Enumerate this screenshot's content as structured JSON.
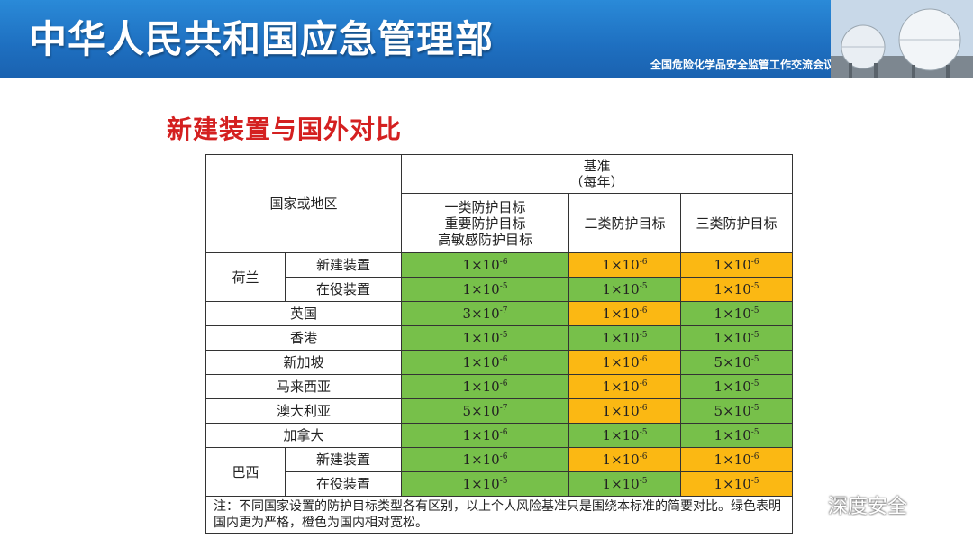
{
  "banner": {
    "title": "中华人民共和国应急管理部",
    "subtitle": "全国危险化学品安全监管工作交流会议"
  },
  "slide": {
    "title": "新建装置与国外对比"
  },
  "table": {
    "header": {
      "country_col": "国家或地区",
      "baseline": "基准",
      "baseline_unit": "（每年）",
      "cat1_lines": [
        "一类防护目标",
        "重要防护目标",
        "高敏感防护目标"
      ],
      "cat2": "二类防护目标",
      "cat3": "三类防护目标"
    },
    "colors": {
      "green": "#77c04a",
      "orange": "#fbb813"
    },
    "rows": [
      {
        "group": "荷兰",
        "sub": "新建装置",
        "cells": [
          {
            "m": "1",
            "e": "-6",
            "c": "green"
          },
          {
            "m": "1",
            "e": "-6",
            "c": "orange"
          },
          {
            "m": "1",
            "e": "-6",
            "c": "orange"
          }
        ]
      },
      {
        "group": "荷兰",
        "sub": "在役装置",
        "cells": [
          {
            "m": "1",
            "e": "-5",
            "c": "green"
          },
          {
            "m": "1",
            "e": "-5",
            "c": "green"
          },
          {
            "m": "1",
            "e": "-5",
            "c": "orange"
          }
        ]
      },
      {
        "name": "英国",
        "cells": [
          {
            "m": "3",
            "e": "-7",
            "c": "green"
          },
          {
            "m": "1",
            "e": "-6",
            "c": "orange"
          },
          {
            "m": "1",
            "e": "-5",
            "c": "green"
          }
        ]
      },
      {
        "name": "香港",
        "cells": [
          {
            "m": "1",
            "e": "-5",
            "c": "green"
          },
          {
            "m": "1",
            "e": "-5",
            "c": "green"
          },
          {
            "m": "1",
            "e": "-5",
            "c": "green"
          }
        ]
      },
      {
        "name": "新加坡",
        "cells": [
          {
            "m": "1",
            "e": "-6",
            "c": "green"
          },
          {
            "m": "1",
            "e": "-6",
            "c": "orange"
          },
          {
            "m": "5",
            "e": "-5",
            "c": "green"
          }
        ]
      },
      {
        "name": "马来西亚",
        "cells": [
          {
            "m": "1",
            "e": "-6",
            "c": "green"
          },
          {
            "m": "1",
            "e": "-6",
            "c": "orange"
          },
          {
            "m": "1",
            "e": "-5",
            "c": "green"
          }
        ]
      },
      {
        "name": "澳大利亚",
        "cells": [
          {
            "m": "5",
            "e": "-7",
            "c": "green"
          },
          {
            "m": "1",
            "e": "-6",
            "c": "orange"
          },
          {
            "m": "5",
            "e": "-5",
            "c": "green"
          }
        ]
      },
      {
        "name": "加拿大",
        "cells": [
          {
            "m": "1",
            "e": "-6",
            "c": "green"
          },
          {
            "m": "1",
            "e": "-5",
            "c": "green"
          },
          {
            "m": "1",
            "e": "-5",
            "c": "green"
          }
        ]
      },
      {
        "group": "巴西",
        "sub": "新建装置",
        "cells": [
          {
            "m": "1",
            "e": "-6",
            "c": "green"
          },
          {
            "m": "1",
            "e": "-6",
            "c": "orange"
          },
          {
            "m": "1",
            "e": "-6",
            "c": "orange"
          }
        ]
      },
      {
        "group": "巴西",
        "sub": "在役装置",
        "cells": [
          {
            "m": "1",
            "e": "-5",
            "c": "green"
          },
          {
            "m": "1",
            "e": "-5",
            "c": "green"
          },
          {
            "m": "1",
            "e": "-5",
            "c": "orange"
          }
        ]
      }
    ],
    "note": "注：不同国家设置的防护目标类型各有区别，以上个人风险基准只是围绕本标准的简要对比。绿色表明国内更为严格，橙色为国内相对宽松。"
  },
  "watermark": {
    "icon": "wechat-icon",
    "text": "深度安全"
  }
}
